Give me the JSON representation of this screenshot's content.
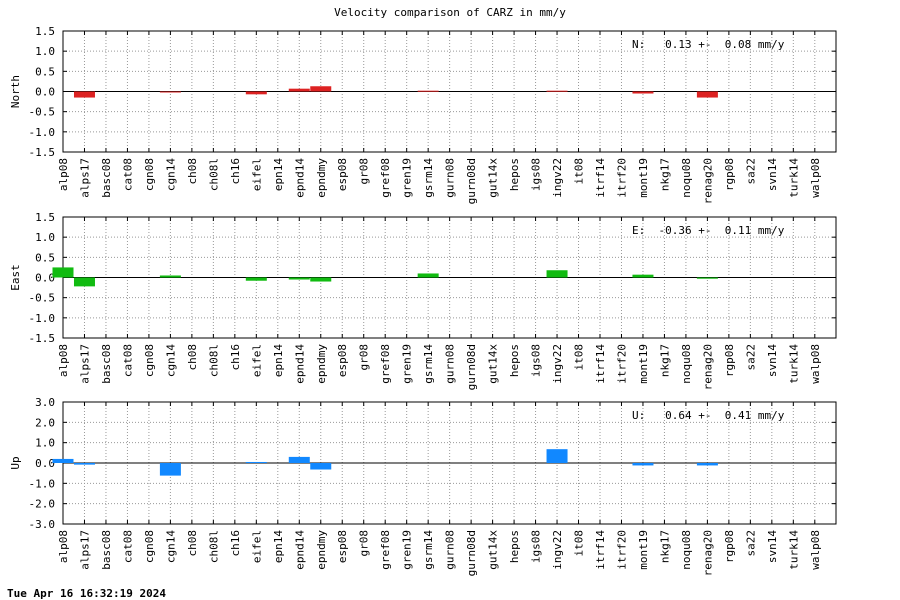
{
  "title": "Velocity comparison of CARZ in mm/y",
  "timestamp": "Tue Apr 16 16:32:19 2024",
  "chart_data": [
    {
      "type": "bar",
      "ylabel": "North",
      "color": "#dd2222",
      "ylim": [
        -1.5,
        1.5
      ],
      "yticks": [
        "1.5",
        "1.0",
        "0.5",
        "0.0",
        "-0.5",
        "-1.0",
        "-1.5"
      ],
      "summary": "N:   0.13 +-  0.08 mm/y",
      "categories": [
        "alp08",
        "alps17",
        "basc08",
        "cat08",
        "cgn08",
        "cgn14",
        "ch08",
        "ch08l",
        "ch16",
        "eifel",
        "epn14",
        "epnd14",
        "epndmy",
        "esp08",
        "gr08",
        "gref08",
        "gren19",
        "gsrm14",
        "gurn08",
        "gurn08d",
        "gut14x",
        "hepos",
        "igs08",
        "ingv22",
        "it08",
        "itrf14",
        "itrf20",
        "mont19",
        "nkg17",
        "noqu08",
        "renag20",
        "rgp08",
        "sa22",
        "svn14",
        "turk14",
        "walp08"
      ],
      "values": [
        0,
        -0.15,
        0,
        0,
        0,
        -0.02,
        0,
        0,
        0,
        -0.07,
        0,
        0.07,
        0.13,
        0,
        0,
        0,
        0,
        0.02,
        0,
        0,
        0,
        0,
        0,
        0.02,
        0,
        0,
        0,
        -0.05,
        0,
        0,
        -0.15,
        0,
        0,
        0,
        0,
        0
      ],
      "grid": true
    },
    {
      "type": "bar",
      "ylabel": "East",
      "color": "#11bb11",
      "ylim": [
        -1.5,
        1.5
      ],
      "yticks": [
        "1.5",
        "1.0",
        "0.5",
        "0.0",
        "-0.5",
        "-1.0",
        "-1.5"
      ],
      "summary": "E:  -0.36 +-  0.11 mm/y",
      "categories": [
        "alp08",
        "alps17",
        "basc08",
        "cat08",
        "cgn08",
        "cgn14",
        "ch08",
        "ch08l",
        "ch16",
        "eifel",
        "epn14",
        "epnd14",
        "epndmy",
        "esp08",
        "gr08",
        "gref08",
        "gren19",
        "gsrm14",
        "gurn08",
        "gurn08d",
        "gut14x",
        "hepos",
        "igs08",
        "ingv22",
        "it08",
        "itrf14",
        "itrf20",
        "mont19",
        "nkg17",
        "noqu08",
        "renag20",
        "rgp08",
        "sa22",
        "svn14",
        "turk14",
        "walp08"
      ],
      "values": [
        0.25,
        -0.22,
        0,
        0,
        0,
        0.05,
        0,
        0,
        0,
        -0.08,
        0,
        -0.05,
        -0.1,
        0,
        0,
        0,
        0,
        0.1,
        0,
        0,
        0,
        0,
        0,
        0.18,
        0,
        0,
        0,
        0.07,
        0,
        0,
        -0.03,
        0,
        0,
        0,
        0,
        0
      ],
      "grid": true
    },
    {
      "type": "bar",
      "ylabel": "Up",
      "color": "#1188ff",
      "ylim": [
        -3.0,
        3.0
      ],
      "yticks": [
        "3.0",
        "2.0",
        "1.0",
        "0.0",
        "-1.0",
        "-2.0",
        "-3.0"
      ],
      "summary": "U:   0.64 +-  0.41 mm/y",
      "categories": [
        "alp08",
        "alps17",
        "basc08",
        "cat08",
        "cgn08",
        "cgn14",
        "ch08",
        "ch08l",
        "ch16",
        "eifel",
        "epn14",
        "epnd14",
        "epndmy",
        "esp08",
        "gr08",
        "gref08",
        "gren19",
        "gsrm14",
        "gurn08",
        "gurn08d",
        "gut14x",
        "hepos",
        "igs08",
        "ingv22",
        "it08",
        "itrf14",
        "itrf20",
        "mont19",
        "nkg17",
        "noqu08",
        "renag20",
        "rgp08",
        "sa22",
        "svn14",
        "turk14",
        "walp08"
      ],
      "values": [
        0.2,
        -0.08,
        0,
        0,
        0,
        -0.62,
        0,
        0,
        0,
        0.05,
        0,
        0.3,
        -0.32,
        0,
        0,
        0,
        0,
        0,
        0,
        0,
        0,
        0,
        0,
        0.68,
        0,
        0,
        0,
        -0.12,
        0,
        0,
        -0.12,
        0,
        0,
        0,
        0,
        0
      ],
      "grid": true
    }
  ]
}
